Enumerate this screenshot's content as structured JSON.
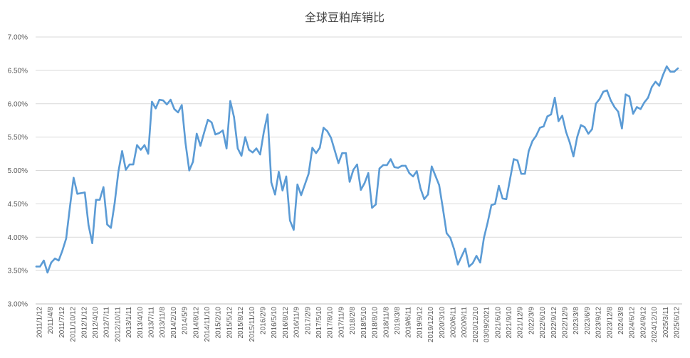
{
  "chart_data": {
    "type": "line",
    "title": "全球豆粕库销比",
    "xlabel": "",
    "ylabel": "",
    "ylim": [
      3.0,
      7.0
    ],
    "yticks": [
      "7.00%",
      "6.50%",
      "6.00%",
      "5.50%",
      "5.00%",
      "4.50%",
      "4.00%",
      "3.50%",
      "3.00%"
    ],
    "ytick_values": [
      7.0,
      6.5,
      6.0,
      5.5,
      5.0,
      4.5,
      4.0,
      3.5,
      3.0
    ],
    "grid": true,
    "legend": "none",
    "color": "#5b9bd5",
    "xtick_labels": [
      "2011/1/12",
      "2011/4/8",
      "2011/7/12",
      "2011/10/12",
      "2012/1/12",
      "2012/4/10",
      "2012/7/11",
      "2012/10/11",
      "2013/1/11",
      "2013/4/10",
      "2013/7/11",
      "2013/11/8",
      "2014/2/10",
      "2014/5/9",
      "2014/8/12",
      "2014/11/10",
      "2015/2/10",
      "2015/5/12",
      "2015/8/12",
      "2015/11/10",
      "2016/2/9",
      "2016/5/10",
      "2016/8/12",
      "2016/11/9",
      "2017/2/9",
      "2017/5/10",
      "2017/8/10",
      "2017/11/9",
      "2018/2/8",
      "2018/5/10",
      "2018/8/10",
      "2018/11/8",
      "2019/3/8",
      "2019/6/11",
      "2019/9/12",
      "2019/12/10",
      "2020/3/10",
      "2020/6/11",
      "2020/9/11",
      "2020/12/10",
      "03/09/2021",
      "2021/6/10",
      "2021/9/10",
      "2021/12/9",
      "2022/3/9",
      "2022/6/10",
      "2022/9/12",
      "2022/12/9",
      "2023/3/8",
      "2023/6/9",
      "2023/9/12",
      "2023/12/8",
      "2024/3/8",
      "2024/6/12",
      "2024/9/12",
      "2024/12/10",
      "2025/3/11",
      "2025/6/12"
    ],
    "series": [
      {
        "values": [
          3.56,
          3.56,
          3.65,
          3.47,
          3.62,
          3.68,
          3.65,
          3.8,
          3.98,
          4.45,
          4.89,
          4.65,
          4.66,
          4.67,
          4.18,
          3.91,
          4.56,
          4.56,
          4.75,
          4.19,
          4.14,
          4.51,
          4.98,
          5.29,
          5.01,
          5.09,
          5.09,
          5.38,
          5.31,
          5.38,
          5.25,
          6.03,
          5.93,
          6.06,
          6.05,
          5.99,
          6.06,
          5.92,
          5.87,
          5.98,
          5.41,
          5.0,
          5.13,
          5.55,
          5.37,
          5.57,
          5.76,
          5.72,
          5.54,
          5.56,
          5.6,
          5.33,
          6.04,
          5.8,
          5.33,
          5.22,
          5.5,
          5.31,
          5.27,
          5.33,
          5.24,
          5.58,
          5.84,
          4.82,
          4.64,
          4.98,
          4.7,
          4.91,
          4.25,
          4.11,
          4.79,
          4.63,
          4.79,
          4.95,
          5.34,
          5.26,
          5.34,
          5.64,
          5.59,
          5.49,
          5.3,
          5.11,
          5.26,
          5.26,
          4.83,
          5.01,
          5.09,
          4.71,
          4.81,
          4.96,
          4.44,
          4.49,
          5.03,
          5.08,
          5.08,
          5.17,
          5.05,
          5.04,
          5.07,
          5.07,
          4.96,
          4.91,
          4.99,
          4.73,
          4.57,
          4.64,
          5.06,
          4.92,
          4.78,
          4.43,
          4.06,
          3.99,
          3.82,
          3.59,
          3.71,
          3.83,
          3.56,
          3.61,
          3.72,
          3.62,
          3.99,
          4.22,
          4.48,
          4.5,
          4.77,
          4.58,
          4.57,
          4.87,
          5.17,
          5.15,
          4.95,
          4.95,
          5.29,
          5.44,
          5.52,
          5.64,
          5.66,
          5.81,
          5.84,
          6.09,
          5.74,
          5.82,
          5.58,
          5.42,
          5.21,
          5.5,
          5.68,
          5.65,
          5.55,
          5.62,
          6.0,
          6.07,
          6.18,
          6.2,
          6.05,
          5.95,
          5.88,
          5.63,
          6.14,
          6.11,
          5.85,
          5.95,
          5.92,
          6.02,
          6.09,
          6.25,
          6.33,
          6.27,
          6.43,
          6.56,
          6.48,
          6.48,
          6.53
        ]
      }
    ]
  }
}
